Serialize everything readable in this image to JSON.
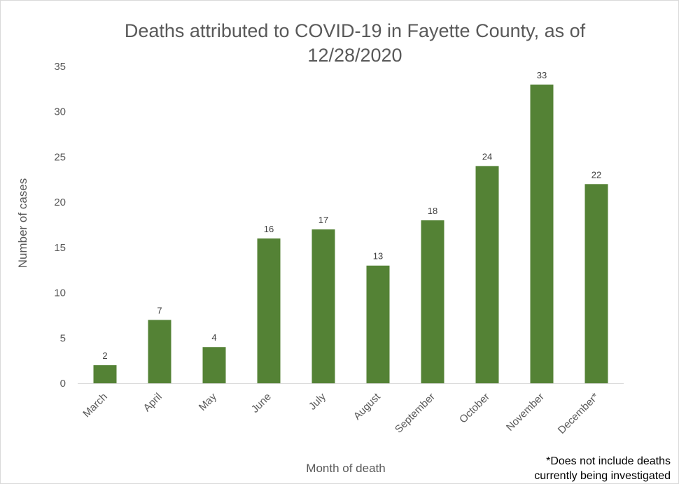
{
  "chart_data": {
    "type": "bar",
    "title": "Deaths attributed to COVID-19 in Fayette County, as of 12/28/2020",
    "title_lines": [
      "Deaths attributed to COVID-19 in Fayette County, as of",
      "12/28/2020"
    ],
    "xlabel": "Month of death",
    "ylabel": "Number of cases",
    "categories": [
      "March",
      "April",
      "May",
      "June",
      "July",
      "August",
      "September",
      "October",
      "November",
      "December*"
    ],
    "values": [
      2,
      7,
      4,
      16,
      17,
      13,
      18,
      24,
      33,
      22
    ],
    "ylim": [
      0,
      35
    ],
    "yticks": [
      0,
      5,
      10,
      15,
      20,
      25,
      30,
      35
    ],
    "grid": false,
    "legend": "none",
    "bar_color": "#548235",
    "footnote_lines": [
      "*Does not include deaths",
      "currently being investigated"
    ]
  }
}
